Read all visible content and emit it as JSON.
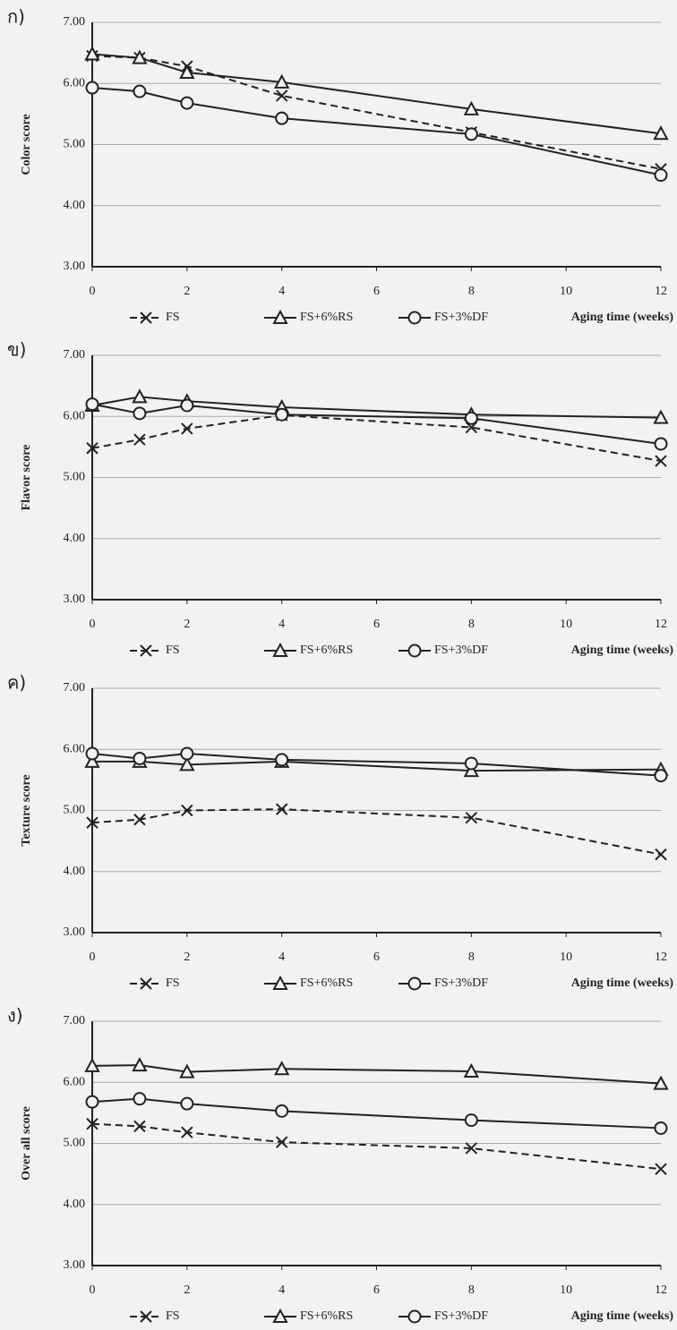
{
  "chart_data": [
    {
      "type": "line",
      "panel_label": "ก)",
      "y_label": "Color score",
      "x_label": "Aging time (weeks)",
      "x": [
        0,
        1,
        2,
        4,
        8,
        12
      ],
      "xlim": [
        0,
        12
      ],
      "xticks": [
        0,
        2,
        4,
        6,
        8,
        10,
        12
      ],
      "ylim": [
        3,
        7
      ],
      "yticks": [
        {
          "value": 3,
          "label": "3.00"
        },
        {
          "value": 4,
          "label": "4.00"
        },
        {
          "value": 5,
          "label": "5.00"
        },
        {
          "value": 6,
          "label": "6.00"
        },
        {
          "value": 7,
          "label": "7.00"
        }
      ],
      "grid": true,
      "series": [
        {
          "name": "FS",
          "color": "#222222",
          "marker": "x",
          "dashed": true,
          "values": [
            6.45,
            6.42,
            6.28,
            5.8,
            5.2,
            4.6
          ]
        },
        {
          "name": "FS+6%RS",
          "color": "#222222",
          "marker": "triangle",
          "dashed": false,
          "values": [
            6.48,
            6.42,
            6.18,
            6.02,
            5.58,
            5.18
          ]
        },
        {
          "name": "FS+3%DF",
          "color": "#222222",
          "marker": "circle",
          "dashed": false,
          "values": [
            5.93,
            5.87,
            5.68,
            5.43,
            5.17,
            4.5
          ]
        }
      ]
    },
    {
      "type": "line",
      "panel_label": "ข)",
      "y_label": "Flavor score",
      "x_label": "Aging time (weeks)",
      "x": [
        0,
        1,
        2,
        4,
        8,
        12
      ],
      "xlim": [
        0,
        12
      ],
      "xticks": [
        0,
        2,
        4,
        6,
        8,
        10,
        12
      ],
      "ylim": [
        3,
        7
      ],
      "yticks": [
        {
          "value": 3,
          "label": "3.00"
        },
        {
          "value": 4,
          "label": "4.00"
        },
        {
          "value": 5,
          "label": "5.00"
        },
        {
          "value": 6,
          "label": "6.00"
        },
        {
          "value": 7,
          "label": "7.00"
        }
      ],
      "grid": true,
      "series": [
        {
          "name": "FS",
          "color": "#222222",
          "marker": "x",
          "dashed": true,
          "values": [
            5.48,
            5.62,
            5.8,
            6.02,
            5.82,
            5.27
          ]
        },
        {
          "name": "FS+6%RS",
          "color": "#222222",
          "marker": "triangle",
          "dashed": false,
          "values": [
            6.18,
            6.32,
            6.25,
            6.15,
            6.03,
            5.98
          ]
        },
        {
          "name": "FS+3%DF",
          "color": "#222222",
          "marker": "circle",
          "dashed": false,
          "values": [
            6.2,
            6.05,
            6.18,
            6.03,
            5.97,
            5.55
          ]
        }
      ]
    },
    {
      "type": "line",
      "panel_label": "ค)",
      "y_label": "Texture score",
      "x_label": "Aging time (weeks)",
      "x": [
        0,
        1,
        2,
        4,
        8,
        12
      ],
      "xlim": [
        0,
        12
      ],
      "xticks": [
        0,
        2,
        4,
        6,
        8,
        10,
        12
      ],
      "ylim": [
        3,
        7
      ],
      "yticks": [
        {
          "value": 3,
          "label": "3.00"
        },
        {
          "value": 4,
          "label": "4.00"
        },
        {
          "value": 5,
          "label": "5.00"
        },
        {
          "value": 6,
          "label": "6.00"
        },
        {
          "value": 7,
          "label": "7.00"
        }
      ],
      "grid": true,
      "series": [
        {
          "name": "FS",
          "color": "#222222",
          "marker": "x",
          "dashed": true,
          "values": [
            4.8,
            4.85,
            5.0,
            5.02,
            4.88,
            4.28
          ]
        },
        {
          "name": "FS+6%RS",
          "color": "#222222",
          "marker": "triangle",
          "dashed": false,
          "values": [
            5.8,
            5.8,
            5.75,
            5.8,
            5.65,
            5.67
          ]
        },
        {
          "name": "FS+3%DF",
          "color": "#222222",
          "marker": "circle",
          "dashed": false,
          "values": [
            5.93,
            5.85,
            5.93,
            5.83,
            5.77,
            5.57
          ]
        }
      ]
    },
    {
      "type": "line",
      "panel_label": "ง)",
      "y_label": "Over all score",
      "x_label": "Aging time (weeks)",
      "x": [
        0,
        1,
        2,
        4,
        8,
        12
      ],
      "xlim": [
        0,
        12
      ],
      "xticks": [
        0,
        2,
        4,
        6,
        8,
        10,
        12
      ],
      "ylim": [
        3,
        7
      ],
      "yticks": [
        {
          "value": 3,
          "label": "3.00"
        },
        {
          "value": 4,
          "label": "4.00"
        },
        {
          "value": 5,
          "label": "5.00"
        },
        {
          "value": 6,
          "label": "6.00"
        },
        {
          "value": 7,
          "label": "7.00"
        }
      ],
      "grid": true,
      "series": [
        {
          "name": "FS",
          "color": "#222222",
          "marker": "x",
          "dashed": true,
          "values": [
            5.32,
            5.28,
            5.18,
            5.02,
            4.92,
            4.58
          ]
        },
        {
          "name": "FS+6%RS",
          "color": "#222222",
          "marker": "triangle",
          "dashed": false,
          "values": [
            6.27,
            6.28,
            6.17,
            6.22,
            6.18,
            5.98
          ]
        },
        {
          "name": "FS+3%DF",
          "color": "#222222",
          "marker": "circle",
          "dashed": false,
          "values": [
            5.68,
            5.73,
            5.65,
            5.53,
            5.38,
            5.25
          ]
        }
      ]
    }
  ]
}
